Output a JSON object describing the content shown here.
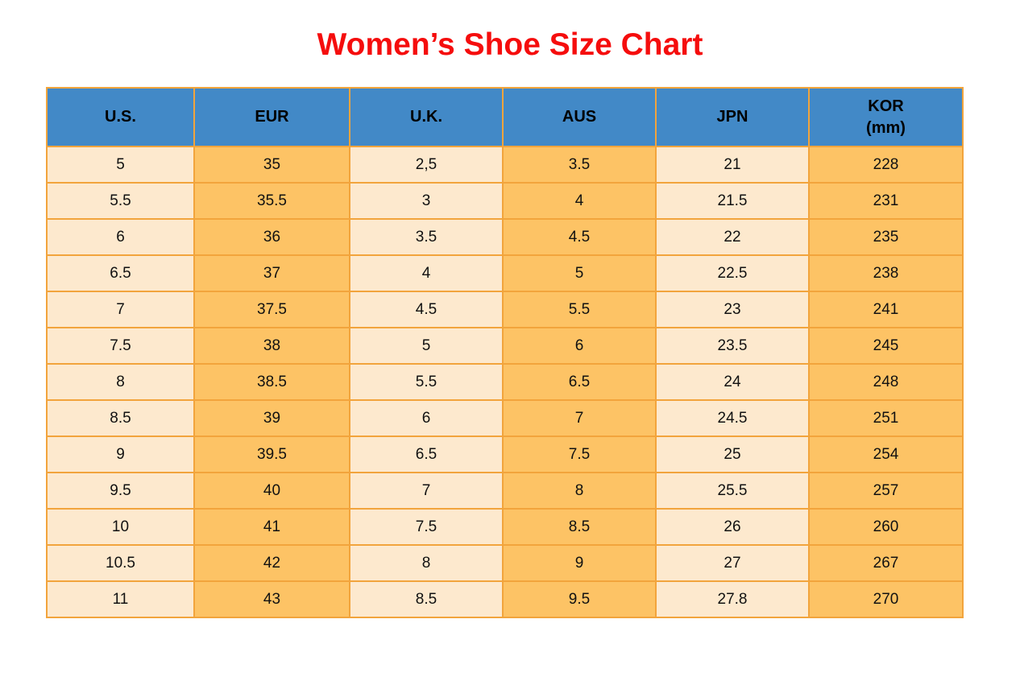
{
  "title": "Women’s Shoe Size Chart",
  "colors": {
    "title_color": "#f50d0d",
    "header_bg": "#4289c7",
    "border": "#f2a43c",
    "col_light": "#fde9ce",
    "col_orange": "#fdc365",
    "text": "#111111"
  },
  "chart_data": {
    "type": "table",
    "title": "Women’s Shoe Size Chart",
    "columns": [
      "U.S.",
      "EUR",
      "U.K.",
      "AUS",
      "JPN",
      "KOR\n(mm)"
    ],
    "rows": [
      [
        "5",
        "35",
        "2,5",
        "3.5",
        "21",
        "228"
      ],
      [
        "5.5",
        "35.5",
        "3",
        "4",
        "21.5",
        "231"
      ],
      [
        "6",
        "36",
        "3.5",
        "4.5",
        "22",
        "235"
      ],
      [
        "6.5",
        "37",
        "4",
        "5",
        "22.5",
        "238"
      ],
      [
        "7",
        "37.5",
        "4.5",
        "5.5",
        "23",
        "241"
      ],
      [
        "7.5",
        "38",
        "5",
        "6",
        "23.5",
        "245"
      ],
      [
        "8",
        "38.5",
        "5.5",
        "6.5",
        "24",
        "248"
      ],
      [
        "8.5",
        "39",
        "6",
        "7",
        "24.5",
        "251"
      ],
      [
        "9",
        "39.5",
        "6.5",
        "7.5",
        "25",
        "254"
      ],
      [
        "9.5",
        "40",
        "7",
        "8",
        "25.5",
        "257"
      ],
      [
        "10",
        "41",
        "7.5",
        "8.5",
        "26",
        "260"
      ],
      [
        "10.5",
        "42",
        "8",
        "9",
        "27",
        "267"
      ],
      [
        "11",
        "43",
        "8.5",
        "9.5",
        "27.8",
        "270"
      ]
    ],
    "layout": {
      "header_text_color": "#000000",
      "column_fill_pattern": [
        "light",
        "orange",
        "light",
        "orange",
        "light",
        "orange"
      ],
      "grid": true
    }
  }
}
